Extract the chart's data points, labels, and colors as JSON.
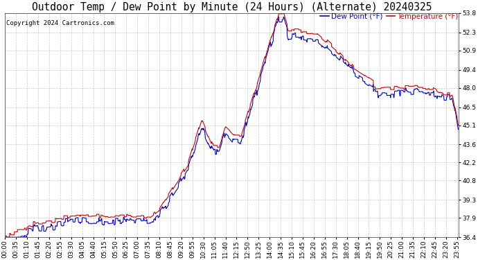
{
  "title": "Outdoor Temp / Dew Point by Minute (24 Hours) (Alternate) 20240325",
  "copyright": "Copyright 2024 Cartronics.com",
  "legend_dew": "Dew Point (°F)",
  "legend_temp": "Temperature (°F)",
  "dew_color": "#0000cc",
  "temp_color": "#cc0000",
  "background_color": "#ffffff",
  "grid_color": "#bbbbbb",
  "ylim_min": 36.4,
  "ylim_max": 53.8,
  "yticks": [
    36.4,
    37.9,
    39.3,
    40.8,
    42.2,
    43.6,
    45.1,
    46.5,
    48.0,
    49.4,
    50.9,
    52.3,
    53.8
  ],
  "title_fontsize": 10.5,
  "copyright_fontsize": 6.5,
  "legend_fontsize": 7.5,
  "tick_fontsize": 6.5,
  "line_width": 0.8,
  "figwidth": 6.9,
  "figheight": 3.75,
  "dpi": 100
}
